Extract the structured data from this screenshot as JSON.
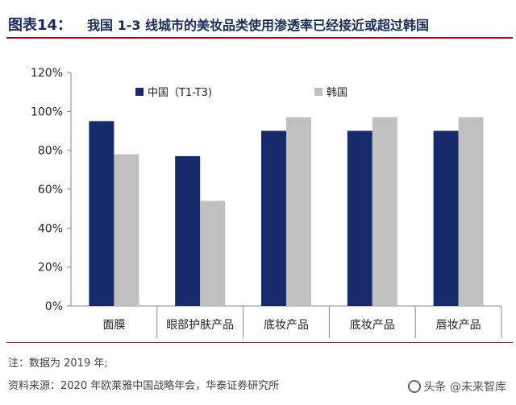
{
  "header": {
    "figure_label": "图表14：",
    "title": "我国 1-3 线城市的美妆品类使用渗透率已经接近或超过韩国"
  },
  "chart_data": {
    "type": "bar",
    "categories": [
      "面膜",
      "眼部护肤产品",
      "底妆产品",
      "底妆产品",
      "唇妆产品"
    ],
    "series": [
      {
        "name": "中国（T1-T3)",
        "color": "#172a6b",
        "values": [
          95,
          77,
          90,
          90,
          90
        ]
      },
      {
        "name": "韩国",
        "color": "#c0c0c0",
        "values": [
          78,
          54,
          97,
          97,
          97
        ]
      }
    ],
    "y_ticks": [
      "0%",
      "20%",
      "40%",
      "60%",
      "80%",
      "100%",
      "120%"
    ],
    "ylim": [
      0,
      120
    ],
    "ylabel": "",
    "xlabel": "",
    "legend_position": "top"
  },
  "footer": {
    "note": "注：数据为 2019 年;",
    "source": "资料来源：2020 年欧莱雅中国战略年会，华泰证券研究所"
  },
  "watermark": {
    "text": "头条 @未来智库"
  }
}
